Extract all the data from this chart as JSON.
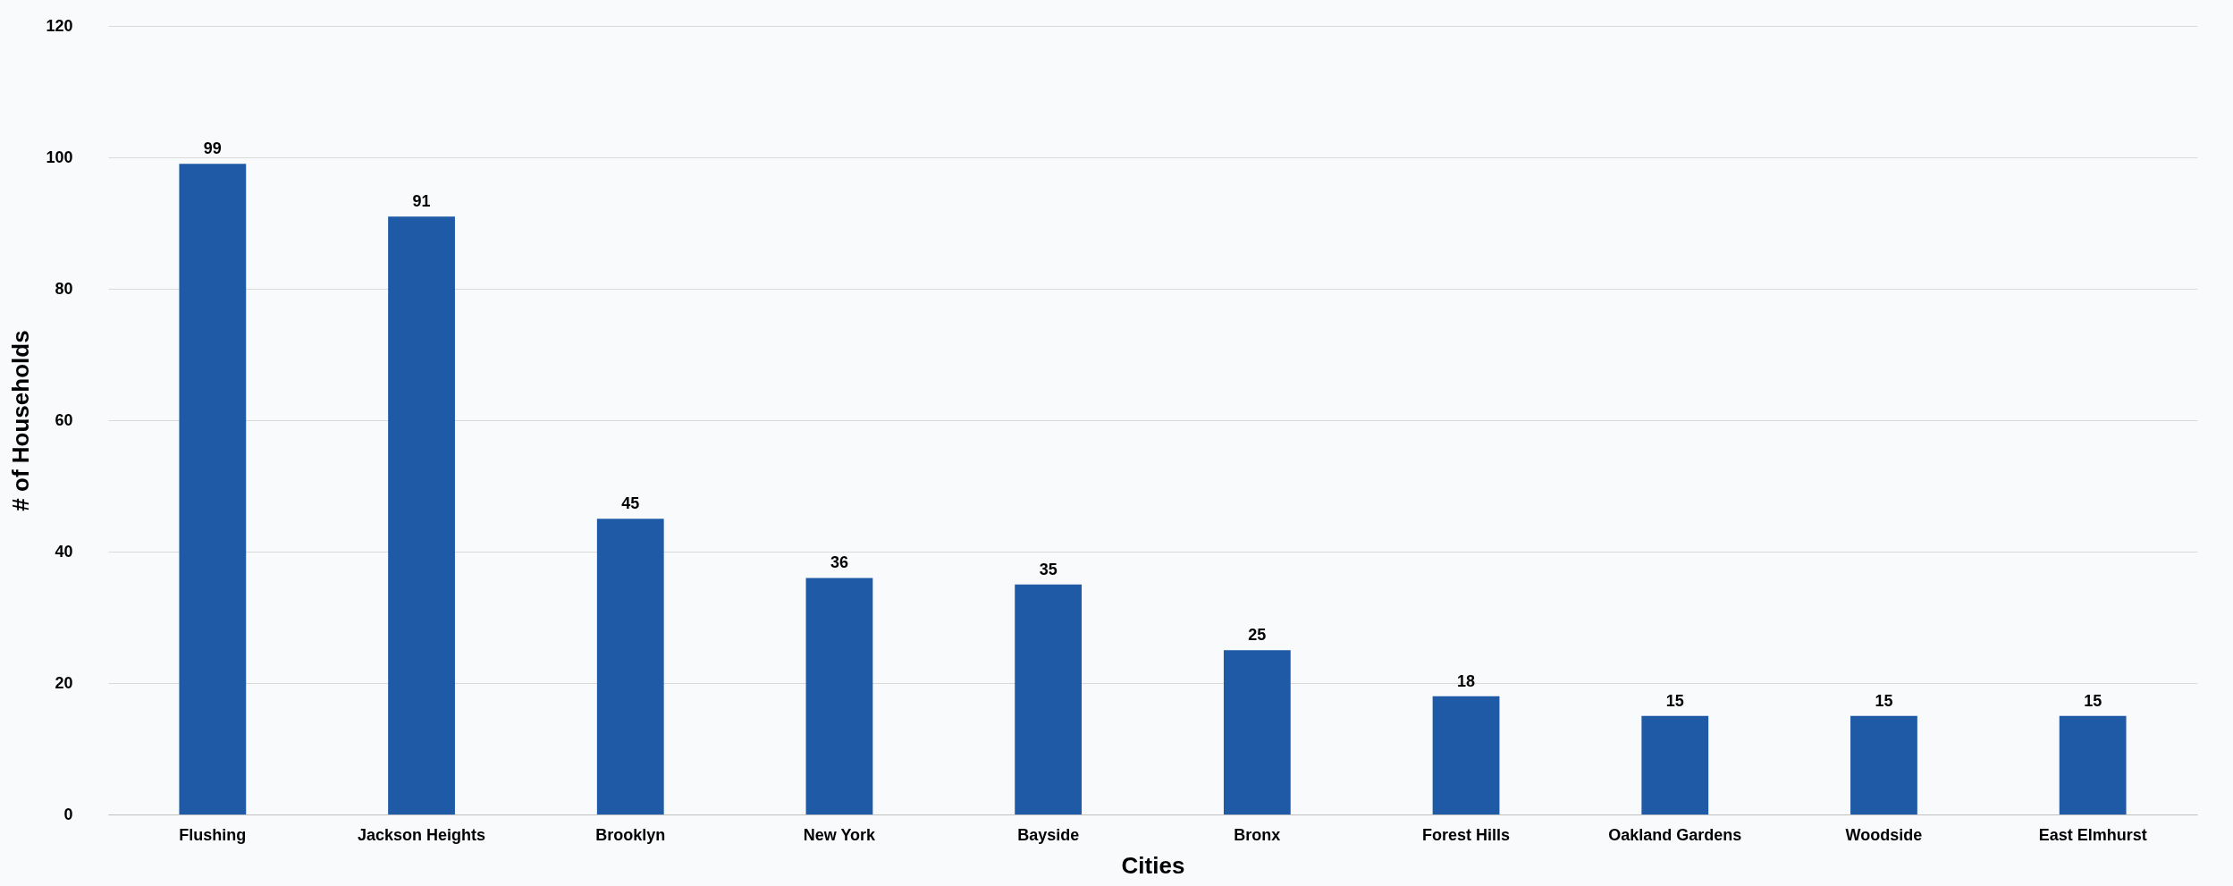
{
  "chart_data": {
    "type": "bar",
    "xlabel": "Cities",
    "ylabel": "# of Households",
    "categories": [
      "Flushing",
      "Jackson Heights",
      "Brooklyn",
      "New York",
      "Bayside",
      "Bronx",
      "Forest Hills",
      "Oakland Gardens",
      "Woodside",
      "East Elmhurst"
    ],
    "values": [
      99,
      91,
      45,
      36,
      35,
      25,
      18,
      15,
      15,
      15
    ],
    "color": "#1f5aa6",
    "ylim": [
      0,
      120
    ],
    "yticks": [
      0,
      20,
      40,
      60,
      80,
      100,
      120
    ],
    "grid": "y",
    "data_labels": true
  }
}
